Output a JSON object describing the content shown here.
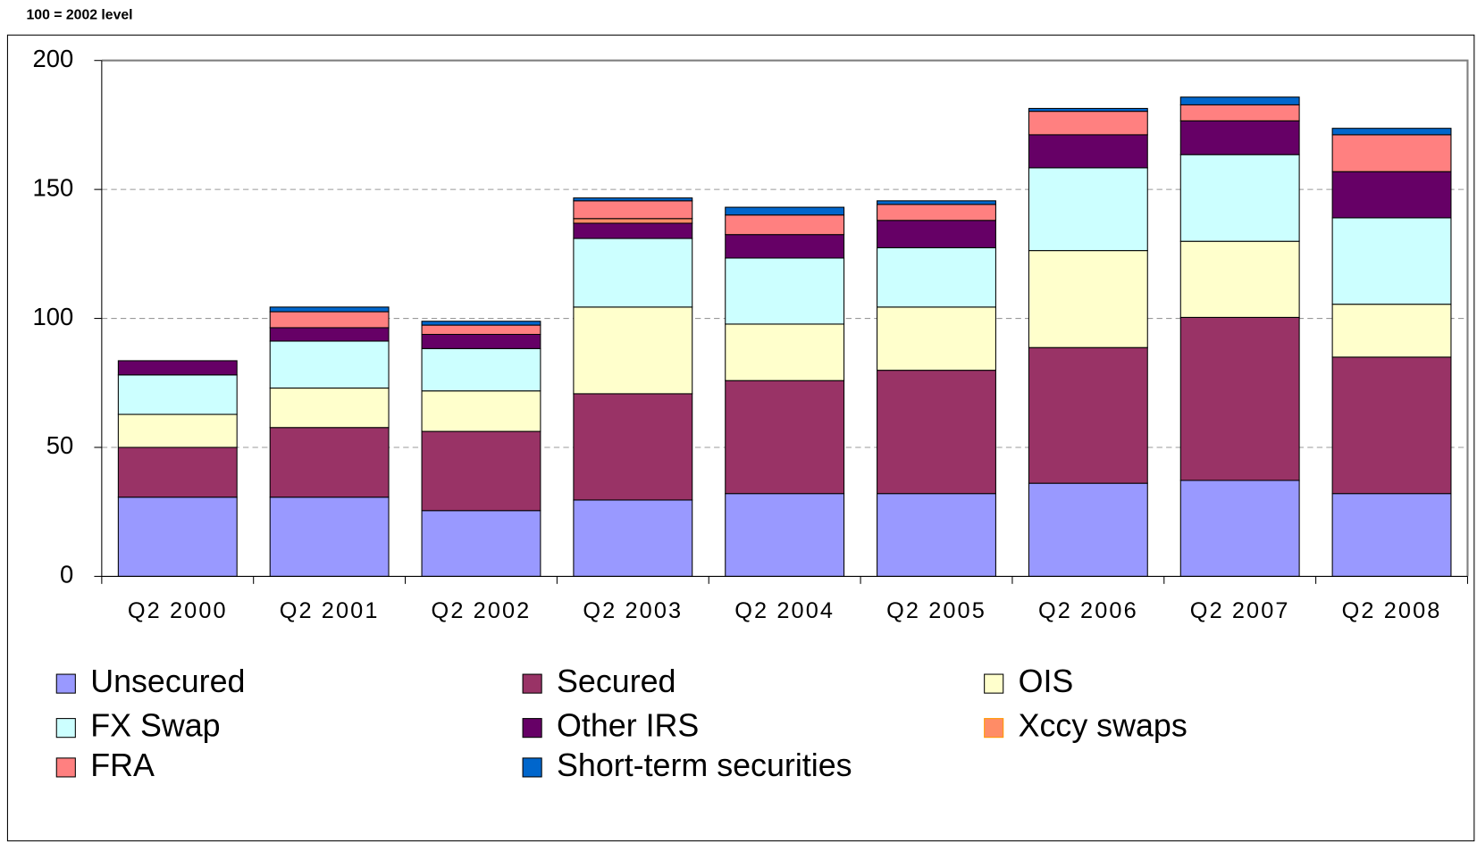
{
  "chart_data": {
    "type": "stacked_bar",
    "subtitle": "100 = 2002  level",
    "categories": [
      "Q2 2000",
      "Q2 2001",
      "Q2 2002",
      "Q2 2003",
      "Q2 2004",
      "Q2 2005",
      "Q2 2006",
      "Q2 2007",
      "Q2 2008"
    ],
    "series": [
      {
        "name": "Unsecured",
        "color": "#9999ff",
        "values": [
          30.7,
          30.7,
          25.5,
          29.6,
          32.1,
          32.1,
          36.1,
          37.2,
          32.1
        ]
      },
      {
        "name": "Secured",
        "color": "#993366",
        "values": [
          19.3,
          27,
          30.7,
          41.2,
          43.8,
          47.8,
          52.6,
          63.2,
          52.9
        ]
      },
      {
        "name": "OIS",
        "color": "#ffffcc",
        "values": [
          12.8,
          15.3,
          15.7,
          33.6,
          21.9,
          24.5,
          37.6,
          29.5,
          20.5
        ]
      },
      {
        "name": "FX Swap",
        "color": "#ccffff",
        "values": [
          15.3,
          18.2,
          16.4,
          26.6,
          25.6,
          23,
          32.1,
          33.6,
          33.5
        ]
      },
      {
        "name": "Other IRS",
        "color": "#660066",
        "values": [
          5.5,
          5.2,
          5.5,
          5.9,
          9.1,
          10.6,
          12.8,
          13.1,
          17.9
        ]
      },
      {
        "name": "Xccy swaps",
        "color": "#ff8c66",
        "values": [
          0,
          0,
          0,
          1.8,
          0,
          0,
          0,
          0,
          0
        ]
      },
      {
        "name": "FRA",
        "color": "#ff8080",
        "values": [
          0,
          6.2,
          3.6,
          6.9,
          7.6,
          6.2,
          9.1,
          6.2,
          14.3
        ]
      },
      {
        "name": "Short-term securities",
        "color": "#0066cc",
        "values": [
          0,
          1.8,
          1.5,
          1.1,
          3,
          1.4,
          1.1,
          3,
          2.5
        ]
      }
    ],
    "ylim": [
      0,
      200
    ],
    "yticks": [
      0,
      50,
      100,
      150,
      200
    ],
    "grid": true,
    "legend": "bottom"
  }
}
